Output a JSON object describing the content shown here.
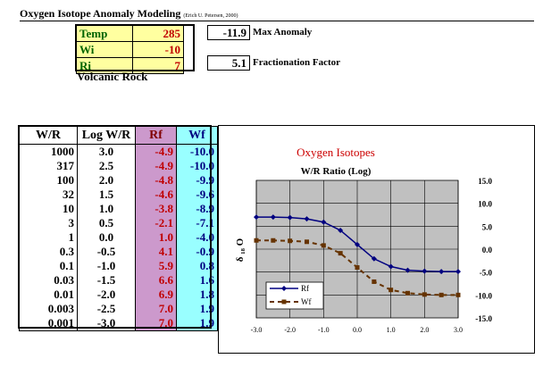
{
  "header": {
    "title": "Oxygen Isotope Anomaly Modeling",
    "credit": "(Erich U. Petersen, 2000)"
  },
  "params": [
    {
      "label": "Temp",
      "value": "285"
    },
    {
      "label": "Wi",
      "value": "-10"
    },
    {
      "label": "Ri",
      "value": "7"
    }
  ],
  "rock_type": "Volcanic Rock",
  "outputs": {
    "max_anomaly": {
      "value": "-11.9",
      "label": "Max Anomaly"
    },
    "fractionation": {
      "value": "5.1",
      "label": "Fractionation Factor"
    }
  },
  "table": {
    "headers": [
      "W/R",
      "Log W/R",
      "Rf",
      "Wf"
    ],
    "rows": [
      [
        "1000",
        "3.0",
        "-4.9",
        "-10.0"
      ],
      [
        "317",
        "2.5",
        "-4.9",
        "-10.0"
      ],
      [
        "100",
        "2.0",
        "-4.8",
        "-9.9"
      ],
      [
        "32",
        "1.5",
        "-4.6",
        "-9.6"
      ],
      [
        "10",
        "1.0",
        "-3.8",
        "-8.9"
      ],
      [
        "3",
        "0.5",
        "-2.1",
        "-7.1"
      ],
      [
        "1",
        "0.0",
        "1.0",
        "-4.0"
      ],
      [
        "0.3",
        "-0.5",
        "4.1",
        "-0.9"
      ],
      [
        "0.1",
        "-1.0",
        "5.9",
        "0.8"
      ],
      [
        "0.03",
        "-1.5",
        "6.6",
        "1.6"
      ],
      [
        "0.01",
        "-2.0",
        "6.9",
        "1.8"
      ],
      [
        "0.003",
        "-2.5",
        "7.0",
        "1.9"
      ],
      [
        "0.001",
        "-3.0",
        "7.0",
        "1.9"
      ]
    ]
  },
  "colors": {
    "title_red": "#cc0000",
    "rf_line": "#000080",
    "wf_line": "#663300",
    "plot_bg": "#c0c0c0"
  },
  "chart_data": {
    "type": "line",
    "title": "Oxygen Isotopes",
    "subtitle": "W/R Ratio (Log)",
    "xlabel": "",
    "ylabel": "δ ₁₈ O",
    "xlim": [
      -3,
      3
    ],
    "ylim": [
      -15,
      15
    ],
    "x_ticks": [
      "-3.0",
      "-2.0",
      "-1.0",
      "0.0",
      "1.0",
      "2.0",
      "3.0"
    ],
    "y_ticks": [
      "15.0",
      "10.0",
      "5.0",
      "0.0",
      "-5.0",
      "-10.0",
      "-15.0"
    ],
    "x": [
      -3.0,
      -2.5,
      -2.0,
      -1.5,
      -1.0,
      -0.5,
      0.0,
      0.5,
      1.0,
      1.5,
      2.0,
      2.5,
      3.0
    ],
    "series": [
      {
        "name": "Rf",
        "values": [
          7.0,
          7.0,
          6.9,
          6.6,
          5.9,
          4.1,
          1.0,
          -2.1,
          -3.8,
          -4.6,
          -4.8,
          -4.9,
          -4.9
        ]
      },
      {
        "name": "Wf",
        "values": [
          1.9,
          1.9,
          1.8,
          1.6,
          0.8,
          -0.9,
          -4.0,
          -7.1,
          -8.9,
          -9.6,
          -9.9,
          -10.0,
          -10.0
        ]
      }
    ],
    "legend": "bottom-left",
    "grid": true
  }
}
